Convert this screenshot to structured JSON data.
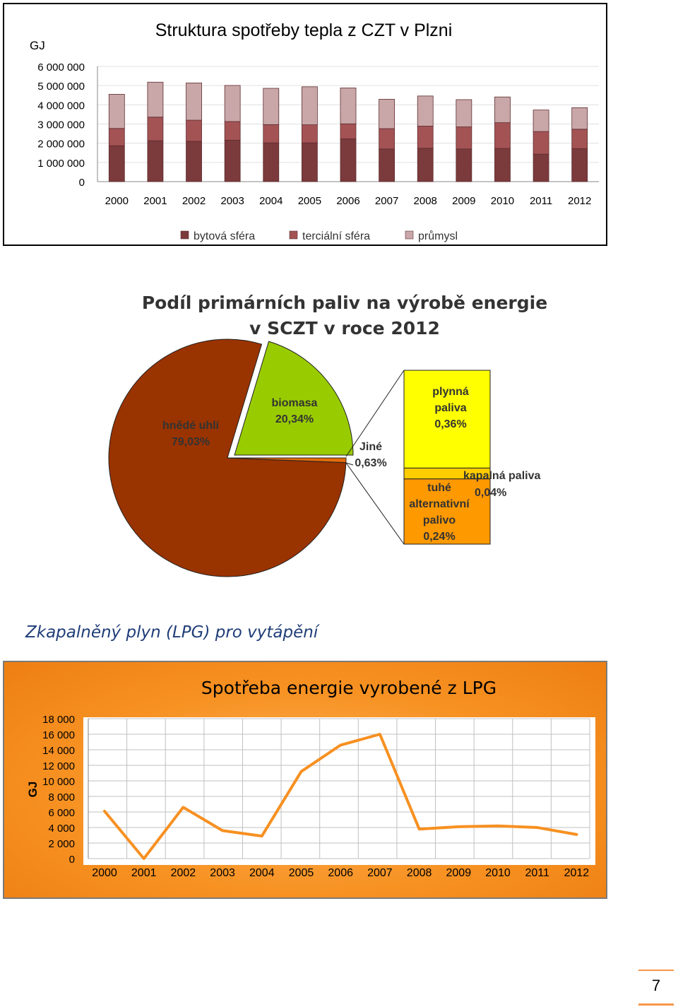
{
  "chart_data": [
    {
      "type": "bar",
      "stacked": true,
      "title": "Struktura spotřeby tepla z CZT v Plzni",
      "ylabel": "GJ",
      "ylim": [
        0,
        6000000
      ],
      "yticks": [
        "6 000 000",
        "5 000 000",
        "4 000 000",
        "3 000 000",
        "2 000 000",
        "1 000 000",
        "0"
      ],
      "categories": [
        "2000",
        "2001",
        "2002",
        "2003",
        "2004",
        "2005",
        "2006",
        "2007",
        "2008",
        "2009",
        "2010",
        "2011",
        "2012"
      ],
      "series": [
        {
          "name": "bytová sféra",
          "color": "#7b3a3c",
          "values": [
            1870000,
            2130000,
            2100000,
            2160000,
            2020000,
            2020000,
            2230000,
            1700000,
            1740000,
            1700000,
            1730000,
            1430000,
            1720000
          ]
        },
        {
          "name": "terciální sféra",
          "color": "#a45355",
          "values": [
            900000,
            1230000,
            1100000,
            970000,
            950000,
            940000,
            780000,
            1060000,
            1150000,
            1150000,
            1340000,
            1180000,
            1010000
          ]
        },
        {
          "name": "průmysl",
          "color": "#c9a7a9",
          "values": [
            1780000,
            1820000,
            1940000,
            1880000,
            1890000,
            1980000,
            1870000,
            1530000,
            1570000,
            1420000,
            1340000,
            1120000,
            1120000
          ]
        }
      ],
      "legend_position": "bottom",
      "grid": true
    },
    {
      "type": "pie",
      "title_line1": "Podíl primárních paliv na výrobě energie",
      "title_line2": "v SCZT v roce 2012",
      "slices": [
        {
          "label": "hnědé uhlí",
          "pct_label": "79,03%",
          "value": 79.03,
          "color": "#993300"
        },
        {
          "label": "biomasa",
          "pct_label": "20,34%",
          "value": 20.34,
          "color": "#99cc00"
        },
        {
          "label": "Jiné",
          "pct_label": "0,63%",
          "value": 0.63,
          "color": "#e46c0a"
        }
      ],
      "breakdown": {
        "of": "Jiné",
        "items": [
          {
            "label_lines": [
              "plynná",
              "paliva",
              "0,36%"
            ],
            "value": 0.36,
            "color": "#ffff00"
          },
          {
            "label_lines": [
              "kapalná paliva",
              "0,04%"
            ],
            "value": 0.04,
            "color": "#ffcc00"
          },
          {
            "label_lines": [
              "tuhé",
              "alternativní",
              "palivo",
              "0,24%"
            ],
            "value": 0.24,
            "color": "#ff9900"
          }
        ]
      }
    },
    {
      "type": "line",
      "title": "Spotřeba energie vyrobené z LPG",
      "ylabel": "GJ",
      "ylim": [
        0,
        18000
      ],
      "yticks": [
        "18 000",
        "16 000",
        "14 000",
        "12 000",
        "10 000",
        "8 000",
        "6 000",
        "4 000",
        "2 000",
        "0"
      ],
      "categories": [
        "2000",
        "2001",
        "2002",
        "2003",
        "2004",
        "2005",
        "2006",
        "2007",
        "2008",
        "2009",
        "2010",
        "2011",
        "2012"
      ],
      "series": [
        {
          "values": [
            6100,
            0,
            6600,
            3600,
            2900,
            11200,
            14600,
            16000,
            3800,
            4100,
            4200,
            4000,
            3100
          ],
          "color": "#f79021"
        }
      ],
      "grid": true
    }
  ],
  "section_title": "Zkapalněný plyn (LPG) pro vytápění",
  "page_number": "7"
}
